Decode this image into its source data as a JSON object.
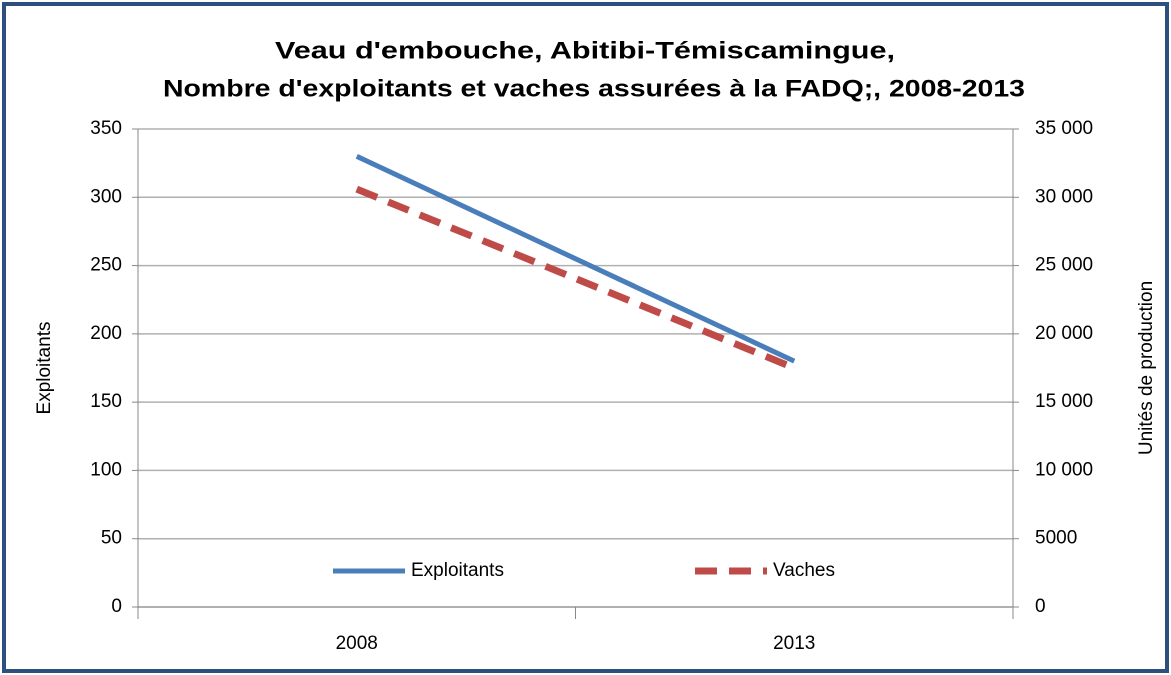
{
  "chart_data": {
    "type": "line",
    "title": [
      "Veau d'embouche, Abitibi-Témiscamingue,",
      "Nombre d'exploitants et vaches assurées  à la FADQ;, 2008-2013"
    ],
    "y_label": "Exploitants",
    "y2_label": "Unités de production",
    "categories": [
      "2008",
      "2013"
    ],
    "series": [
      {
        "name": "Exploitants",
        "color": "#4a7ebb",
        "line_style": "solid",
        "values": [
          330,
          180
        ]
      },
      {
        "name": "Vaches",
        "color": "#be4b48",
        "line_style": "dashed",
        "axis": "y2",
        "values": [
          30600,
          17500
        ]
      }
    ],
    "ylim": [
      0,
      350
    ],
    "yticks": [
      0,
      50,
      100,
      150,
      200,
      250,
      300,
      350
    ],
    "y2lim": [
      0,
      35000
    ],
    "y2ticks": [
      0,
      5000,
      {
        "value": 10000,
        "label": "10 000"
      },
      {
        "value": 15000,
        "label": "15 000"
      },
      {
        "value": 20000,
        "label": "20 000"
      },
      {
        "value": 25000,
        "label": "25 000"
      },
      {
        "value": 30000,
        "label": "30 000"
      },
      {
        "value": 35000,
        "label": "35 000"
      }
    ],
    "grid": true,
    "legend": "bottom"
  }
}
